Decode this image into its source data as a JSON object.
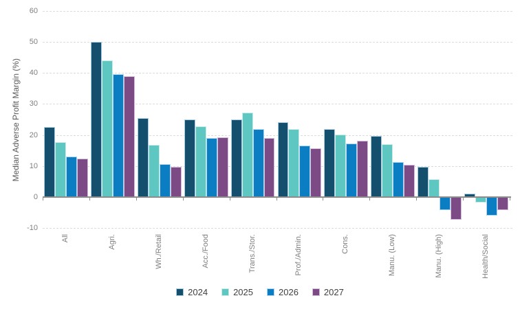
{
  "chart_data": {
    "type": "bar",
    "title": "",
    "xlabel": "",
    "ylabel": "Median Adverse Profit Margin (%)",
    "ylim": [
      -10,
      60
    ],
    "yticks": [
      60,
      50,
      40,
      30,
      20,
      10,
      0,
      -10
    ],
    "grid": "horizontal dashed, solid axis at 0",
    "legend_position": "bottom center",
    "categories": [
      "All",
      "Agri.",
      "Wh./Retail",
      "Acc./Food",
      "Trans./Stor.",
      "Prof./Admin.",
      "Cons.",
      "Manu. (Low)",
      "Manu. (High)",
      "Health/Social"
    ],
    "series": [
      {
        "name": "2024",
        "color": "#14506E",
        "border_color": "#A9CCE0",
        "values": [
          22.5,
          50,
          25.5,
          25.1,
          25,
          24.2,
          22,
          19.7,
          9.8,
          1.1
        ]
      },
      {
        "name": "2025",
        "color": "#5FC7C2",
        "border_color": "#CBEBE9",
        "values": [
          17.8,
          44,
          16.8,
          22.8,
          27.3,
          21.8,
          20.2,
          17,
          5.7,
          -1.8
        ]
      },
      {
        "name": "2026",
        "color": "#0A7DC3",
        "border_color": "#AFD8F0",
        "values": [
          13,
          39.5,
          10.7,
          19,
          22,
          16.7,
          17.3,
          11.2,
          -4.1,
          -5.9
        ]
      },
      {
        "name": "2027",
        "color": "#7C4A85",
        "border_color": "#D5BEDC",
        "values": [
          12.5,
          39,
          9.8,
          19.2,
          19,
          15.6,
          18.2,
          10.4,
          -7.2,
          -4.1
        ]
      }
    ]
  }
}
